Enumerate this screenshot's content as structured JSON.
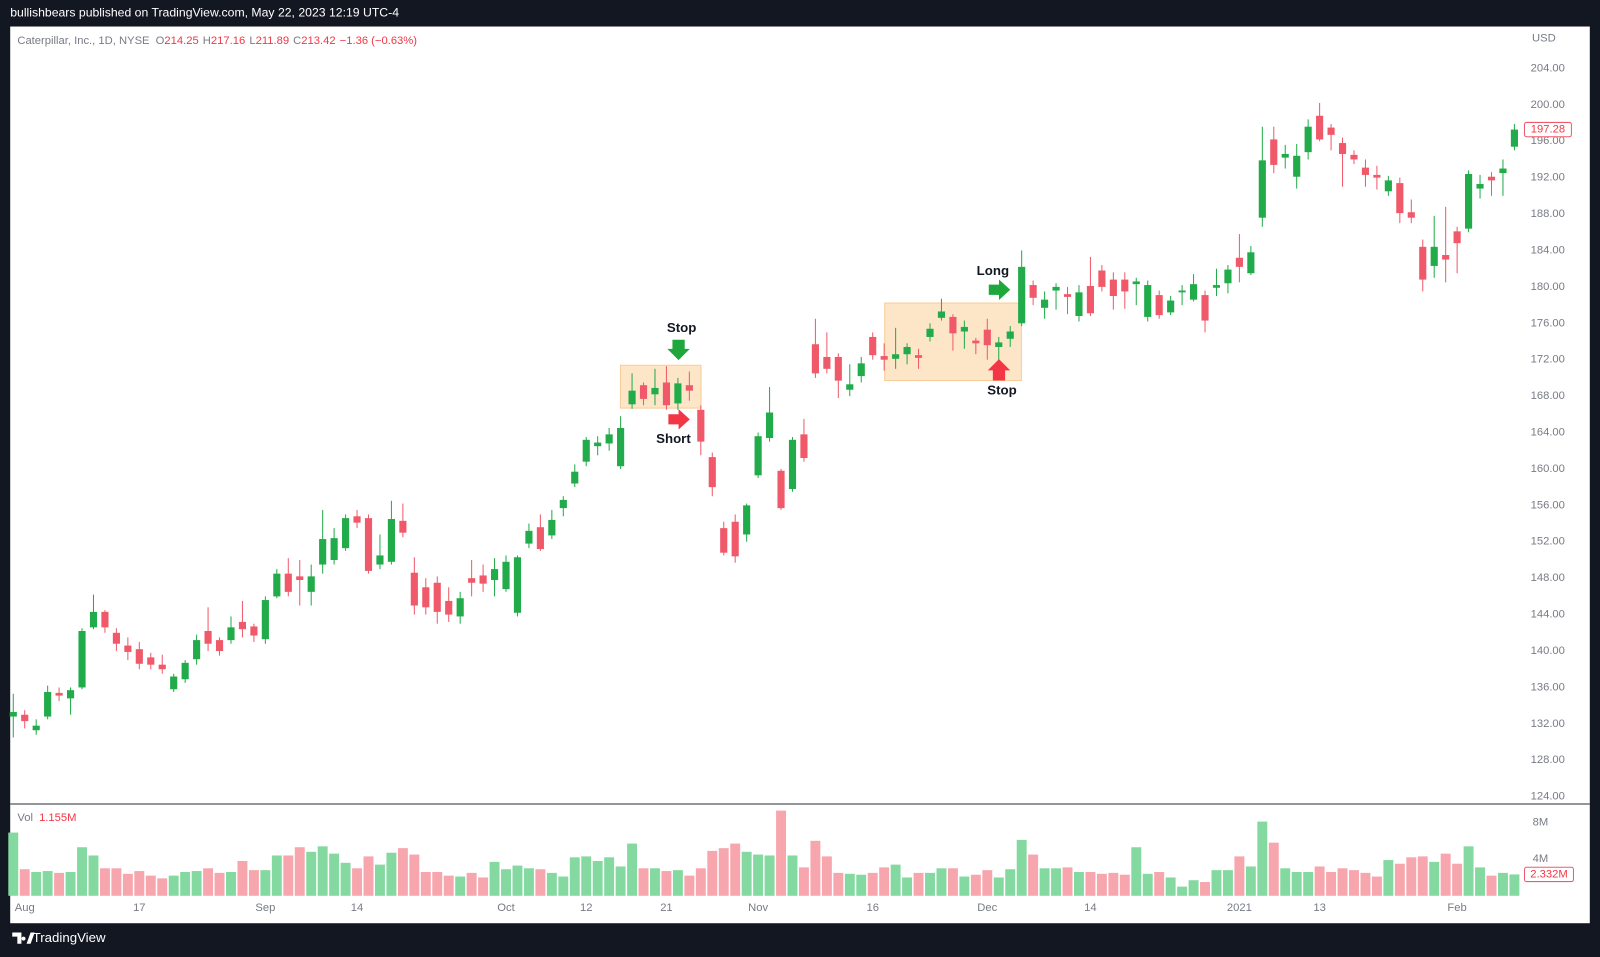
{
  "header": {
    "text": "bullishbears published on TradingView.com, May 22, 2023 12:19 UTC-4"
  },
  "chart_data": {
    "type": "candlestick",
    "legend": {
      "symbol": "Caterpillar, Inc., 1D, NYSE",
      "ohlc": [
        {
          "label": "O",
          "value": 214.25
        },
        {
          "label": "H",
          "value": 217.16
        },
        {
          "label": "L",
          "value": 211.89
        },
        {
          "label": "C",
          "value": 213.42
        }
      ],
      "change": "−1.36 (−0.63%)"
    },
    "currency": "USD",
    "categories": [
      null,
      "Aug",
      null,
      null,
      null,
      null,
      null,
      null,
      null,
      null,
      null,
      "17",
      null,
      null,
      null,
      null,
      null,
      null,
      null,
      null,
      null,
      null,
      "Sep",
      null,
      null,
      null,
      null,
      null,
      null,
      null,
      "14",
      null,
      null,
      null,
      null,
      null,
      null,
      null,
      null,
      null,
      null,
      null,
      null,
      "Oct",
      null,
      null,
      null,
      null,
      null,
      null,
      "12",
      null,
      null,
      null,
      null,
      null,
      null,
      "21",
      null,
      null,
      null,
      null,
      null,
      null,
      null,
      "Nov",
      null,
      null,
      null,
      null,
      null,
      null,
      null,
      null,
      null,
      "16",
      null,
      null,
      null,
      null,
      null,
      null,
      null,
      null,
      null,
      "Dec",
      null,
      null,
      null,
      null,
      null,
      null,
      null,
      null,
      "14",
      null,
      null,
      null,
      null,
      null,
      null,
      null,
      null,
      null,
      null,
      null,
      null,
      "2021",
      null,
      null,
      null,
      null,
      null,
      null,
      "13",
      null,
      null,
      null,
      null,
      null,
      null,
      null,
      null,
      null,
      null,
      null,
      "Feb",
      null,
      null,
      null,
      null,
      null
    ],
    "open": [
      132.8,
      133,
      131.3,
      132.8,
      135.4,
      134.8,
      136,
      142.6,
      144.3,
      142,
      140.6,
      140.2,
      139.3,
      138.5,
      135.8,
      136.9,
      139.1,
      142.2,
      141.2,
      141.2,
      143.2,
      142.7,
      141.3,
      146,
      148.5,
      148.2,
      146.5,
      149.5,
      150,
      151.3,
      154.8,
      154.6,
      149.5,
      149.8,
      154.3,
      148.6,
      147,
      147.5,
      145.5,
      143.8,
      148,
      148.3,
      147.8,
      146.8,
      144.2,
      151.8,
      153.6,
      152.7,
      155.7,
      158.4,
      160.8,
      162.5,
      162.8,
      160.3,
      167.1,
      169.2,
      168.2,
      169.5,
      167.2,
      169.2,
      166.5,
      161.3,
      153.5,
      154.2,
      152.8,
      159.3,
      163.4,
      159.8,
      157.8,
      163.8,
      173.7,
      172.3,
      172.3,
      168.7,
      170.2,
      174.5,
      172.4,
      172.1,
      172.6,
      172.5,
      174.5,
      176.6,
      176.7,
      175.1,
      174.1,
      175.3,
      173.4,
      174.3,
      176,
      180.2,
      177.7,
      179.6,
      179.2,
      176.8,
      180.1,
      181.8,
      180.8,
      180.8,
      180.3,
      176.7,
      179.1,
      177.2,
      179.4,
      178.6,
      179.1,
      179.9,
      180.4,
      183.2,
      181.5,
      187.6,
      196.2,
      194.2,
      192.1,
      194.8,
      198.8,
      197.5,
      195.8,
      194.5,
      193.1,
      192.3,
      190.5,
      191.4,
      188.2,
      184.4,
      182.3,
      183.5,
      186.1,
      186.4,
      190.8,
      192.1,
      192.5,
      195.4
    ],
    "high": [
      135.3,
      133.5,
      132.5,
      136.2,
      136,
      136,
      142.5,
      146.2,
      144.5,
      142.5,
      141.5,
      141,
      139.8,
      139.6,
      137.5,
      139,
      141.8,
      144.8,
      141.5,
      143.8,
      145.5,
      143,
      146,
      149,
      150.2,
      150,
      149.5,
      155.5,
      153.5,
      155,
      155.5,
      155,
      152.8,
      156.5,
      156.2,
      150.3,
      148,
      148.2,
      147,
      146.5,
      150,
      149.5,
      150.2,
      150.5,
      150.5,
      154,
      155,
      155.5,
      157,
      160.5,
      163.5,
      163.6,
      164.5,
      165.8,
      170.5,
      169.5,
      171,
      171.3,
      170,
      170.7,
      167,
      161.8,
      154.2,
      155,
      156.2,
      164,
      169,
      160,
      163.5,
      165.5,
      176.5,
      175,
      172.7,
      171.5,
      172.3,
      175,
      173.8,
      175.5,
      173.8,
      173.2,
      176,
      178.7,
      177,
      176.3,
      174.4,
      176.5,
      174.5,
      175.7,
      184,
      180.7,
      179.5,
      180.4,
      180,
      180.2,
      183.3,
      182.4,
      181.6,
      181.6,
      181,
      180.7,
      179.6,
      179,
      180.2,
      181.4,
      179.6,
      182,
      182.4,
      185.8,
      184.5,
      197.6,
      197.6,
      195.6,
      195.7,
      198.4,
      200.2,
      197.9,
      196.4,
      195,
      194,
      193.3,
      192.2,
      192,
      189.6,
      185.2,
      187.8,
      188.8,
      186.6,
      192.8,
      192.3,
      192.6,
      194,
      197.9
    ],
    "low": [
      130.5,
      131.5,
      130.8,
      132.5,
      134.5,
      133,
      135.8,
      142.4,
      142,
      140,
      139,
      138,
      138,
      137.5,
      135.5,
      136.5,
      138.5,
      140,
      139.5,
      140.8,
      141.5,
      141,
      140.8,
      145.8,
      146,
      145,
      145,
      148.5,
      149.5,
      151,
      153.5,
      148.5,
      149,
      149.5,
      152.5,
      144,
      144,
      143,
      143.2,
      143,
      146,
      146.5,
      146,
      146.5,
      143.8,
      151.3,
      151,
      152.3,
      154.8,
      158,
      160.3,
      161.5,
      162,
      160,
      166.6,
      167,
      167,
      166.5,
      166.5,
      167.5,
      161.5,
      157,
      150.5,
      149.7,
      152,
      159,
      163,
      155.5,
      157.5,
      160.8,
      170,
      170.5,
      167.8,
      168,
      169.5,
      172,
      170.8,
      171,
      171.5,
      171,
      174,
      176.3,
      173,
      173.2,
      172.6,
      172,
      172,
      173.4,
      175.7,
      178,
      176.5,
      177.5,
      177,
      176.2,
      176.8,
      179.5,
      177.5,
      177.6,
      178,
      176.2,
      176.5,
      176.9,
      178,
      178.4,
      175,
      179,
      179.3,
      180.5,
      181.3,
      186.6,
      192.5,
      193,
      190.8,
      194,
      196,
      195,
      191,
      193.5,
      191,
      190.7,
      190,
      187,
      187,
      179.5,
      181,
      180.5,
      181.5,
      186,
      189.7,
      190,
      190,
      195
    ],
    "close": [
      133.3,
      132.3,
      131.8,
      135.5,
      135.1,
      135.7,
      142.2,
      144.3,
      142.6,
      140.8,
      139.9,
      138.6,
      138.5,
      138,
      137.2,
      138.7,
      141.2,
      140.8,
      140,
      142.6,
      142.4,
      141.7,
      145.6,
      148.5,
      146.5,
      147.8,
      148.2,
      152.3,
      152.4,
      154.6,
      154.1,
      148.8,
      150.5,
      154.5,
      153,
      145,
      144.8,
      144.3,
      144,
      145.8,
      147.5,
      147.4,
      149,
      149.8,
      150.3,
      153.2,
      151.2,
      154.4,
      156.6,
      159.7,
      163.2,
      162.9,
      163.8,
      164.5,
      168.6,
      167.7,
      168.9,
      167,
      169.4,
      168.6,
      163,
      158,
      150.8,
      150.4,
      156,
      163.6,
      166.2,
      155.7,
      163.2,
      161.2,
      170.5,
      171,
      169.7,
      169.3,
      171.6,
      172.5,
      172,
      172.6,
      173.4,
      172.2,
      175.4,
      177.3,
      174.9,
      175.6,
      173.8,
      173.6,
      173.9,
      175.1,
      182.2,
      178.8,
      178.6,
      180,
      178.9,
      179.4,
      177.1,
      180,
      179,
      179.5,
      180.6,
      180.2,
      176.9,
      178.5,
      179.6,
      180.3,
      176.3,
      180.2,
      181.9,
      182.2,
      183.8,
      193.9,
      193.4,
      194.6,
      194.4,
      197.6,
      196.2,
      196.7,
      194.6,
      194,
      192.3,
      192,
      191.7,
      188.1,
      187.6,
      180.8,
      184.4,
      183,
      184.8,
      192.4,
      191.3,
      191.7,
      193,
      197.28
    ],
    "up_color": "#22ab4a",
    "down_color": "#f0596a",
    "ylim": [
      123.2,
      208.6
    ],
    "yticks": [
      {
        "value": 124,
        "label": "124.00"
      },
      {
        "value": 128,
        "label": "128.00"
      },
      {
        "value": 132,
        "label": "132.00"
      },
      {
        "value": 136,
        "label": "136.00"
      },
      {
        "value": 140,
        "label": "140.00"
      },
      {
        "value": 144,
        "label": "144.00"
      },
      {
        "value": 148,
        "label": "148.00"
      },
      {
        "value": 152,
        "label": "152.00"
      },
      {
        "value": 156,
        "label": "156.00"
      },
      {
        "value": 160,
        "label": "160.00"
      },
      {
        "value": 164,
        "label": "164.00"
      },
      {
        "value": 168,
        "label": "168.00"
      },
      {
        "value": 172,
        "label": "172.00"
      },
      {
        "value": 176,
        "label": "176.00"
      },
      {
        "value": 180,
        "label": "180.00"
      },
      {
        "value": 184,
        "label": "184.00"
      },
      {
        "value": 188,
        "label": "188.00"
      },
      {
        "value": 192,
        "label": "192.00"
      },
      {
        "value": 196,
        "label": "196.00"
      },
      {
        "value": 200,
        "label": "200.00"
      },
      {
        "value": 204,
        "label": "204.00"
      }
    ],
    "grid": false,
    "volume": {
      "label": "Vol",
      "legend_value": "1.155M",
      "values": [
        6.9,
        2.9,
        2.6,
        2.7,
        2.5,
        2.6,
        5.3,
        4.4,
        3,
        3,
        2.4,
        2.7,
        2.2,
        1.9,
        2.2,
        2.6,
        2.7,
        3,
        2.5,
        2.6,
        3.8,
        2.8,
        2.8,
        4.4,
        4.4,
        5.3,
        4.8,
        5.4,
        4.6,
        3.6,
        3,
        4.3,
        3.4,
        4.7,
        5.2,
        4.5,
        2.6,
        2.6,
        2.2,
        2.1,
        2.5,
        2,
        3.7,
        2.9,
        3.3,
        3,
        2.9,
        2.5,
        2.1,
        4.2,
        4.3,
        3.8,
        4.2,
        3.2,
        5.7,
        3,
        3,
        2.7,
        2.8,
        2.2,
        3,
        4.9,
        5.2,
        5.7,
        4.8,
        4.5,
        4.4,
        9.3,
        4.4,
        3.1,
        6,
        4.3,
        2.5,
        2.4,
        2.3,
        2.5,
        3.1,
        3.4,
        2,
        2.5,
        2.5,
        3,
        3,
        2.1,
        2.3,
        2.8,
        2,
        2.9,
        6.1,
        4.5,
        3,
        3,
        3.1,
        2.6,
        2.6,
        2.4,
        2.5,
        2.3,
        5.3,
        2.4,
        2.6,
        2,
        1,
        1.7,
        1.5,
        2.8,
        2.8,
        4.3,
        3.2,
        8.1,
        5.8,
        3,
        2.6,
        2.6,
        3.2,
        2.6,
        3,
        2.8,
        2.5,
        2.1,
        3.9,
        3.5,
        4.2,
        4.3,
        3.7,
        4.6,
        3.5,
        5.4,
        3.1,
        2.2,
        2.5,
        2.332
      ],
      "last_label": "2.332M",
      "up_color": "#84d9a1",
      "down_color": "#f7a6ae",
      "ylim": [
        0,
        9.8
      ],
      "yticks": [
        {
          "value": 4,
          "label": "4M"
        },
        {
          "value": 8,
          "label": "8M"
        }
      ]
    },
    "annotations": [
      {
        "text": "Stop"
      },
      {
        "text": "Short"
      },
      {
        "text": "Long"
      },
      {
        "text": "Stop"
      }
    ]
  },
  "footer": {
    "brand": "TradingView"
  }
}
